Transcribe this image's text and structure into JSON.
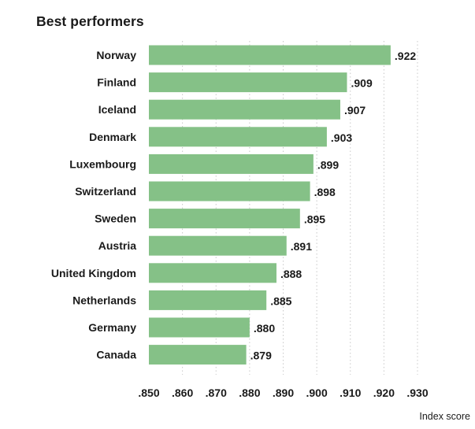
{
  "chart_data": {
    "type": "bar",
    "orientation": "horizontal",
    "title": "Best performers",
    "xlabel": "Index score",
    "categories": [
      "Norway",
      "Finland",
      "Iceland",
      "Denmark",
      "Luxembourg",
      "Switzerland",
      "Sweden",
      "Austria",
      "United Kingdom",
      "Netherlands",
      "Germany",
      "Canada"
    ],
    "values": [
      0.922,
      0.909,
      0.907,
      0.903,
      0.899,
      0.898,
      0.895,
      0.891,
      0.888,
      0.885,
      0.88,
      0.879
    ],
    "value_labels": [
      ".922",
      ".909",
      ".907",
      ".903",
      ".899",
      ".898",
      ".895",
      ".891",
      ".888",
      ".885",
      ".880",
      ".879"
    ],
    "xlim": [
      0.85,
      0.93
    ],
    "ticks": [
      0.85,
      0.86,
      0.87,
      0.88,
      0.89,
      0.9,
      0.91,
      0.92,
      0.93
    ],
    "tick_labels": [
      ".850",
      ".860",
      ".870",
      ".880",
      ".890",
      ".900",
      ".910",
      ".920",
      ".930"
    ],
    "bar_color": "#85c187",
    "grid": true
  }
}
